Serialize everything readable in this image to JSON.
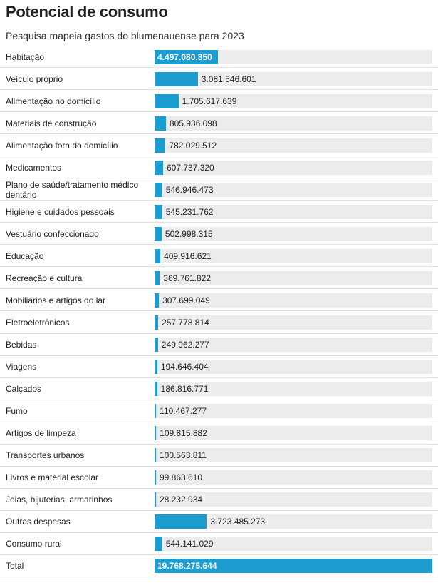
{
  "title": "Potencial de consumo",
  "subtitle": "Pesquisa mapeia gastos do blumenauense para 2023",
  "chart_data": {
    "type": "bar",
    "orientation": "horizontal",
    "title": "Potencial de consumo",
    "subtitle": "Pesquisa mapeia gastos do blumenauense para 2023",
    "bar_color": "#1d9ccf",
    "track_color": "#ececec",
    "xlim": [
      0,
      19768275644
    ],
    "categories": [
      "Habitação",
      "Veículo próprio",
      "Alimentação no domicílio",
      "Materiais de construção",
      "Alimentação fora do domicílio",
      "Medicamentos",
      "Plano de saúde/tratamento médico dentário",
      "Higiene e cuidados pessoais",
      "Vestuário confeccionado",
      "Educação",
      "Recreação e cultura",
      "Mobiliários e artigos do lar",
      "Eletroeletrônicos",
      "Bebidas",
      "Viagens",
      "Calçados",
      "Fumo",
      "Artigos de limpeza",
      "Transportes urbanos",
      "Livros e material escolar",
      "Joias, bijuterias, armarinhos",
      "Outras despesas",
      "Consumo rural",
      "Total"
    ],
    "values": [
      4497080350,
      3081546601,
      1705617639,
      805936098,
      782029512,
      607737320,
      546946473,
      545231762,
      502998315,
      409916621,
      369761822,
      307699049,
      257778814,
      249962277,
      194646404,
      186816771,
      110467277,
      109815882,
      100563811,
      99863610,
      28232934,
      3723485273,
      544141029,
      19768275644
    ],
    "value_labels": [
      "4.497.080.350",
      "3.081.546.601",
      "1.705.617.639",
      "805.936.098",
      "782.029.512",
      "607.737.320",
      "546.946.473",
      "545.231.762",
      "502.998.315",
      "409.916.621",
      "369.761.822",
      "307.699.049",
      "257.778.814",
      "249.962.277",
      "194.646.404",
      "186.816.771",
      "110.467.277",
      "109.815.882",
      "100.563.811",
      "99.863.610",
      "28.232.934",
      "3.723.485.273",
      "544.141.029",
      "19.768.275.644"
    ]
  }
}
